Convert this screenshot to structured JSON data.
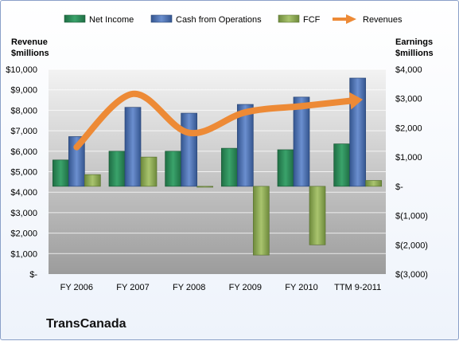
{
  "company_name": "TransCanada",
  "colors": {
    "net_income": "#2e8b57",
    "cash_from_operations": "#4f74b8",
    "fcf": "#8fac5a",
    "revenues": "#ed8a36"
  },
  "chart_data": {
    "type": "bar",
    "categories": [
      "FY 2006",
      "FY 2007",
      "FY 2008",
      "FY 2009",
      "FY 2010",
      "TTM 9-2011"
    ],
    "left_axis": {
      "title_lines": [
        "Revenue",
        "$millions"
      ],
      "ylim": [
        0,
        10000
      ],
      "ticks": [
        0,
        1000,
        2000,
        3000,
        4000,
        5000,
        6000,
        7000,
        8000,
        9000,
        10000
      ],
      "tick_labels": [
        "$-",
        "$1,000",
        "$2,000",
        "$3,000",
        "$4,000",
        "$5,000",
        "$6,000",
        "$7,000",
        "$8,000",
        "$9,000",
        "$10,000"
      ]
    },
    "right_axis": {
      "title_lines": [
        "Earnings",
        "$millions"
      ],
      "ylim": [
        -3000,
        4000
      ],
      "ticks": [
        -3000,
        -2000,
        -1000,
        0,
        1000,
        2000,
        3000,
        4000
      ],
      "tick_labels": [
        "$(3,000)",
        "$(2,000)",
        "$(1,000)",
        "$-",
        "$1,000",
        "$2,000",
        "$3,000",
        "$4,000"
      ]
    },
    "series": [
      {
        "name": "Net Income",
        "type": "bar",
        "axis": "right",
        "values": [
          900,
          1200,
          1200,
          1300,
          1250,
          1450
        ]
      },
      {
        "name": "Cash from Operations",
        "type": "bar",
        "axis": "right",
        "values": [
          1700,
          2700,
          2500,
          2800,
          3050,
          3700
        ]
      },
      {
        "name": "FCF",
        "type": "bar",
        "axis": "right",
        "values": [
          400,
          1000,
          -30,
          -2350,
          -2000,
          200
        ]
      },
      {
        "name": "Revenues",
        "type": "line",
        "axis": "left",
        "values": [
          6200,
          8800,
          6900,
          7900,
          8200,
          8500
        ]
      }
    ],
    "grid": true,
    "legend_position": "top"
  }
}
